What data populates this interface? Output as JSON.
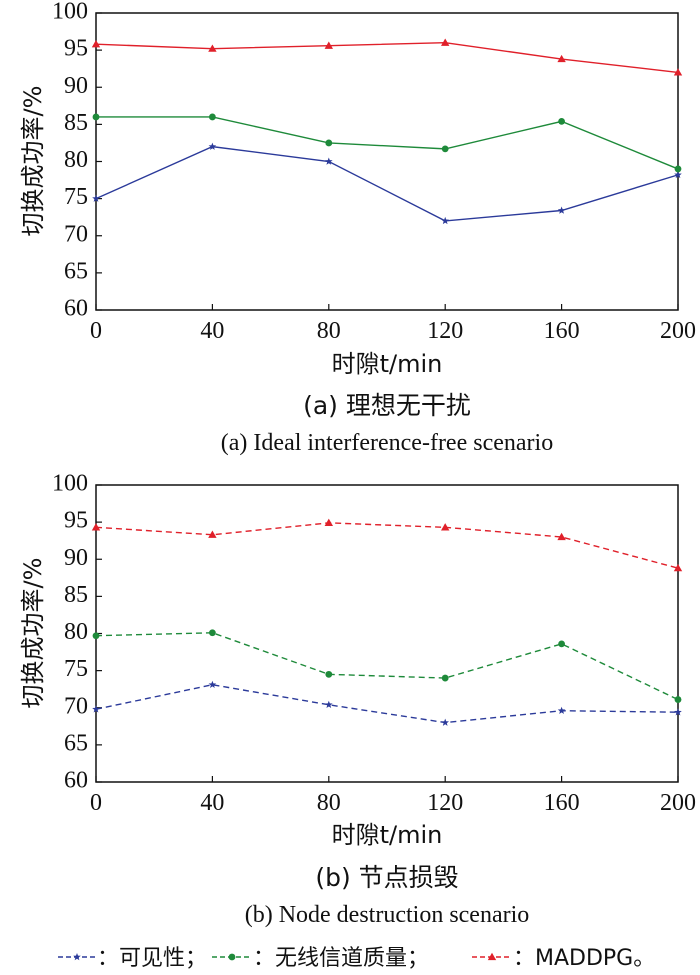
{
  "chart_data": [
    {
      "type": "line",
      "line_style": "solid",
      "x": [
        0,
        40,
        80,
        120,
        160,
        200
      ],
      "xlabel": "时隙t/min",
      "ylabel": "切换成功率/%",
      "xlim": [
        0,
        200
      ],
      "ylim": [
        60,
        100
      ],
      "xticks": [
        "0",
        "40",
        "80",
        "120",
        "160",
        "200"
      ],
      "yticks": [
        "60",
        "65",
        "70",
        "75",
        "80",
        "85",
        "90",
        "95",
        "100"
      ],
      "caption_cn": "(a) 理想无干扰",
      "caption_en": "(a) Ideal interference-free scenario",
      "series": [
        {
          "key": "visibility",
          "color": "#2b3a9a",
          "marker": "star",
          "values": [
            75.0,
            82.0,
            80.0,
            72.0,
            73.4,
            78.2
          ]
        },
        {
          "key": "channel",
          "color": "#1e8a3a",
          "marker": "circle",
          "values": [
            86.0,
            86.0,
            82.5,
            81.7,
            85.4,
            79.0
          ]
        },
        {
          "key": "maddpg",
          "color": "#e0202a",
          "marker": "triangle",
          "values": [
            95.8,
            95.2,
            95.6,
            96.0,
            93.8,
            92.0
          ]
        }
      ]
    },
    {
      "type": "line",
      "line_style": "dashed",
      "x": [
        0,
        40,
        80,
        120,
        160,
        200
      ],
      "xlabel": "时隙t/min",
      "ylabel": "切换成功率/%",
      "xlim": [
        0,
        200
      ],
      "ylim": [
        60,
        100
      ],
      "xticks": [
        "0",
        "40",
        "80",
        "120",
        "160",
        "200"
      ],
      "yticks": [
        "60",
        "65",
        "70",
        "75",
        "80",
        "85",
        "90",
        "95",
        "100"
      ],
      "caption_cn": "(b) 节点损毁",
      "caption_en": "(b) Node destruction scenario",
      "series": [
        {
          "key": "visibility",
          "color": "#2b3a9a",
          "marker": "star",
          "values": [
            69.8,
            73.1,
            70.4,
            68.0,
            69.6,
            69.4
          ]
        },
        {
          "key": "channel",
          "color": "#1e8a3a",
          "marker": "circle",
          "values": [
            79.7,
            80.1,
            74.5,
            74.0,
            78.6,
            71.1
          ]
        },
        {
          "key": "maddpg",
          "color": "#e0202a",
          "marker": "triangle",
          "values": [
            94.3,
            93.3,
            94.9,
            94.3,
            93.0,
            88.8
          ]
        }
      ]
    }
  ],
  "legend": [
    {
      "label": "：可见性；",
      "color": "#2b3a9a",
      "marker": "star"
    },
    {
      "label": "：无线信道质量；",
      "color": "#1e8a3a",
      "marker": "circle"
    },
    {
      "label": "：MADDPG。",
      "color": "#e0202a",
      "marker": "triangle"
    }
  ]
}
